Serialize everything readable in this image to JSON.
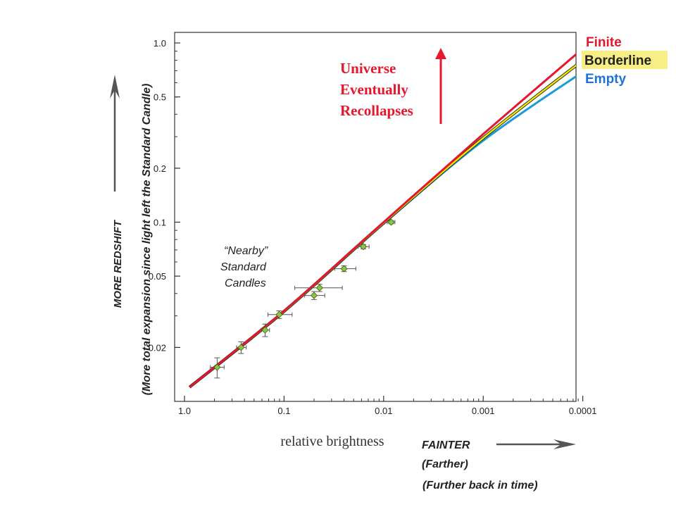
{
  "chart_data": {
    "type": "line",
    "xlabel": "relative brightness",
    "x_scale": "log",
    "x_reversed": true,
    "y_scale": "log",
    "xlim": [
      1.0,
      0.0001
    ],
    "ylim": [
      0.012,
      1.1
    ],
    "x_ticks": [
      {
        "value": 1.0,
        "label": "1.0"
      },
      {
        "value": 0.1,
        "label": "0.1"
      },
      {
        "value": 0.01,
        "label": "0.01"
      },
      {
        "value": 0.001,
        "label": "0.001"
      },
      {
        "value": 0.0001,
        "label": "0.0001"
      }
    ],
    "y_ticks": [
      {
        "value": 1.0,
        "label": "1.0"
      },
      {
        "value": 0.5,
        "label": "0.5"
      },
      {
        "value": 0.2,
        "label": "0.2"
      },
      {
        "value": 0.1,
        "label": "0.1"
      },
      {
        "value": 0.05,
        "label": "0.05"
      },
      {
        "value": 0.02,
        "label": "0.02"
      }
    ],
    "series": [
      {
        "name": "Finite",
        "color": "#e3172d",
        "x": [
          0.89,
          0.1,
          0.01,
          0.001,
          0.0001
        ],
        "y": [
          0.012,
          0.032,
          0.1,
          0.31,
          0.93
        ]
      },
      {
        "name": "Borderline",
        "color": "#f2e600",
        "x": [
          0.89,
          0.1,
          0.01,
          0.001,
          0.0001
        ],
        "y": [
          0.012,
          0.0318,
          0.099,
          0.295,
          0.8
        ]
      },
      {
        "name": "Empty",
        "color": "#1c9ad6",
        "x": [
          0.89,
          0.1,
          0.01,
          0.001,
          0.0001
        ],
        "y": [
          0.012,
          0.0316,
          0.098,
          0.285,
          0.69
        ]
      }
    ],
    "data_points": [
      {
        "x": 0.47,
        "y": 0.0155,
        "xerr": [
          0.4,
          0.55
        ],
        "yerr": [
          0.0135,
          0.0175
        ]
      },
      {
        "x": 0.27,
        "y": 0.02,
        "xerr": [
          0.24,
          0.3
        ],
        "yerr": [
          0.0185,
          0.0215
        ]
      },
      {
        "x": 0.155,
        "y": 0.025,
        "xerr": [
          0.14,
          0.17
        ],
        "yerr": [
          0.023,
          0.027
        ]
      },
      {
        "x": 0.112,
        "y": 0.0305,
        "xerr": [
          0.083,
          0.145
        ],
        "yerr": [
          0.029,
          0.032
        ]
      },
      {
        "x": 0.05,
        "y": 0.039,
        "xerr": [
          0.039,
          0.062
        ],
        "yerr": [
          0.037,
          0.041
        ]
      },
      {
        "x": 0.044,
        "y": 0.043,
        "xerr": [
          0.026,
          0.078
        ],
        "yerr": [
          0.041,
          0.045
        ]
      },
      {
        "x": 0.025,
        "y": 0.055,
        "xerr": [
          0.019,
          0.031
        ],
        "yerr": [
          0.053,
          0.057
        ]
      },
      {
        "x": 0.016,
        "y": 0.073,
        "xerr": [
          0.014,
          0.018
        ],
        "yerr": [
          0.071,
          0.075
        ]
      },
      {
        "x": 0.0084,
        "y": 0.1,
        "xerr": [
          0.0077,
          0.0092
        ],
        "yerr": [
          0.098,
          0.102
        ]
      }
    ],
    "point_color": "#8cc63f"
  },
  "annotations": {
    "recollapse_line1": "Universe",
    "recollapse_line2": "Eventually",
    "recollapse_line3": "Recollapses",
    "nearby_line1": "“Nearby”",
    "nearby_line2": "Standard",
    "nearby_line3": "Candles",
    "y_axis_more_redshift": "MORE REDSHIFT",
    "y_axis_expansion": "(More total expansion since light left the Standard Candle)",
    "x_axis_fainter": "FAINTER",
    "x_axis_farther": "(Farther)",
    "x_axis_further_back": "(Further back in time)"
  },
  "legend": {
    "finite": "Finite",
    "borderline": "Borderline",
    "empty": "Empty"
  },
  "colors": {
    "accent_red": "#e3172d",
    "borderline_highlight": "#f7ef86",
    "empty_blue": "#1f72d6",
    "arrow_gray": "#555555"
  }
}
